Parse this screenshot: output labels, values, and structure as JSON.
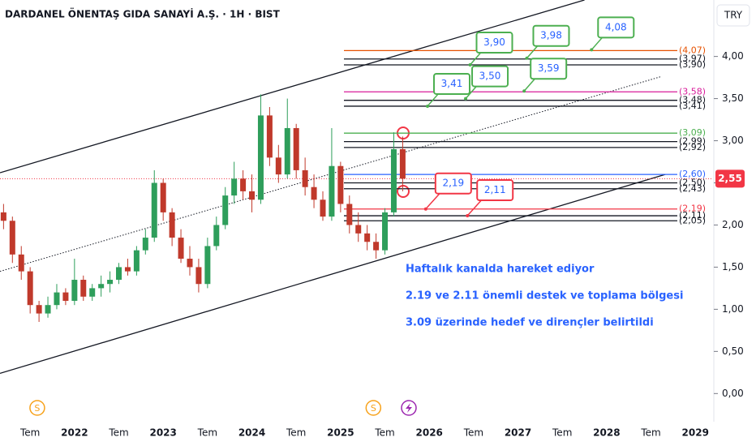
{
  "chart_data": {
    "type": "candlestick",
    "title": "DARDANEL ÖNENTAŞ GIDA SANAYİ A.Ş. · 1H · BIST",
    "currency": "TRY",
    "xlim": [
      2021.16,
      2029.19
    ],
    "ylim": [
      -0.43,
      4.67
    ],
    "xticks": [
      {
        "value": 2021.5,
        "label": "Tem"
      },
      2022,
      {
        "value": 2022.5,
        "label": "Tem"
      },
      2023,
      {
        "value": 2023.5,
        "label": "Tem"
      },
      2024,
      {
        "value": 2024.5,
        "label": "Tem"
      },
      2025,
      {
        "value": 2025.5,
        "label": "Tem"
      },
      2026,
      {
        "value": 2026.5,
        "label": "Tem"
      },
      2027,
      {
        "value": 2027.5,
        "label": "Tem"
      },
      2028,
      {
        "value": 2028.5,
        "label": "Tem"
      },
      2029
    ],
    "yticks": [
      {
        "value": 0,
        "label": "0,00"
      },
      {
        "value": 0.5,
        "label": "0,50"
      },
      {
        "value": 1,
        "label": "1,00"
      },
      {
        "value": 1.5,
        "label": "1,50"
      },
      {
        "value": 2,
        "label": "2,00"
      },
      {
        "value": 2.5,
        "label": "2,50"
      },
      {
        "value": 3,
        "label": "3,00"
      },
      {
        "value": 3.5,
        "label": "3,50"
      },
      {
        "value": 4,
        "label": "4,00"
      }
    ],
    "up_color": "#2e9e5b",
    "down_color": "#c0392b",
    "x": [
      2021.2,
      2021.3,
      2021.4,
      2021.5,
      2021.6,
      2021.7,
      2021.8,
      2021.9,
      2022.0,
      2022.1,
      2022.2,
      2022.3,
      2022.4,
      2022.5,
      2022.6,
      2022.7,
      2022.8,
      2022.9,
      2023.0,
      2023.1,
      2023.2,
      2023.3,
      2023.4,
      2023.5,
      2023.6,
      2023.7,
      2023.8,
      2023.9,
      2024.0,
      2024.1,
      2024.2,
      2024.3,
      2024.4,
      2024.5,
      2024.6,
      2024.7,
      2024.8,
      2024.9,
      2025.0,
      2025.1,
      2025.2,
      2025.3,
      2025.4,
      2025.5,
      2025.6,
      2025.7
    ],
    "open": [
      2.15,
      2.05,
      1.65,
      1.45,
      1.05,
      0.95,
      1.05,
      1.2,
      1.1,
      1.35,
      1.15,
      1.25,
      1.3,
      1.35,
      1.5,
      1.45,
      1.7,
      1.85,
      2.5,
      2.15,
      1.85,
      1.6,
      1.5,
      1.3,
      1.75,
      2.0,
      2.35,
      2.55,
      2.4,
      2.3,
      3.3,
      2.8,
      2.6,
      3.15,
      2.65,
      2.45,
      2.3,
      2.1,
      2.7,
      2.25,
      2.0,
      1.9,
      1.8,
      1.7,
      2.15,
      2.9
    ],
    "high": [
      2.25,
      2.1,
      1.75,
      1.5,
      1.1,
      1.15,
      1.3,
      1.25,
      1.6,
      1.4,
      1.3,
      1.4,
      1.45,
      1.55,
      1.6,
      1.75,
      1.95,
      2.65,
      2.55,
      2.2,
      1.95,
      1.75,
      1.6,
      1.85,
      2.1,
      2.45,
      2.75,
      2.65,
      2.6,
      3.55,
      3.4,
      2.95,
      3.5,
      3.2,
      2.8,
      2.6,
      2.4,
      3.15,
      2.75,
      2.35,
      2.15,
      2.0,
      1.9,
      2.2,
      3.1,
      3.05
    ],
    "low": [
      1.95,
      1.55,
      1.35,
      0.95,
      0.85,
      0.9,
      1.0,
      1.05,
      1.05,
      1.1,
      1.1,
      1.15,
      1.2,
      1.3,
      1.4,
      1.4,
      1.65,
      1.8,
      2.05,
      1.75,
      1.55,
      1.4,
      1.2,
      1.25,
      1.7,
      1.95,
      2.25,
      2.3,
      2.15,
      2.25,
      2.7,
      2.5,
      2.55,
      2.55,
      2.35,
      2.2,
      2.05,
      2.05,
      2.15,
      1.9,
      1.8,
      1.7,
      1.6,
      1.65,
      2.1,
      2.4
    ],
    "close": [
      2.05,
      1.65,
      1.45,
      1.05,
      0.95,
      1.05,
      1.2,
      1.1,
      1.35,
      1.15,
      1.25,
      1.3,
      1.35,
      1.5,
      1.45,
      1.7,
      1.85,
      2.5,
      2.15,
      1.85,
      1.6,
      1.5,
      1.3,
      1.75,
      2.0,
      2.35,
      2.55,
      2.4,
      2.3,
      3.3,
      2.8,
      2.6,
      3.15,
      2.65,
      2.45,
      2.3,
      2.1,
      2.7,
      2.25,
      2.0,
      1.9,
      1.8,
      1.7,
      2.15,
      2.9,
      2.55
    ],
    "last_price": {
      "value": 2.55,
      "label": "2,55"
    },
    "last_price_color": "#f23645",
    "trend_lines": [
      {
        "x": [
          2021.16,
          2027.75
        ],
        "y": [
          2.62,
          4.67
        ],
        "color": "#131722",
        "style": "solid"
      },
      {
        "x": [
          2021.16,
          2028.66
        ],
        "y": [
          0.24,
          2.6
        ],
        "color": "#131722",
        "style": "solid"
      },
      {
        "x": [
          2021.16,
          2028.61
        ],
        "y": [
          1.45,
          3.76
        ],
        "color": "#131722",
        "style": "dotted"
      }
    ],
    "levels": [
      {
        "value": 4.07,
        "label": "(4,07)",
        "color": "#e65100"
      },
      {
        "value": 3.97,
        "label": "(3,97)",
        "color": "#131722"
      },
      {
        "value": 3.9,
        "label": "(3,90)",
        "color": "#131722"
      },
      {
        "value": 3.58,
        "label": "(3,58)",
        "color": "#d81b9a"
      },
      {
        "value": 3.48,
        "label": "(3,48)",
        "color": "#131722"
      },
      {
        "value": 3.41,
        "label": "(3,41)",
        "color": "#131722"
      },
      {
        "value": 3.09,
        "label": "(3,09)",
        "color": "#4caf50"
      },
      {
        "value": 2.99,
        "label": "(2,99)",
        "color": "#131722"
      },
      {
        "value": 2.92,
        "label": "(2,92)",
        "color": "#131722"
      },
      {
        "value": 2.6,
        "label": "(2,60)",
        "color": "#2962ff"
      },
      {
        "value": 2.5,
        "label": "(2,50)",
        "color": "#131722"
      },
      {
        "value": 2.43,
        "label": "(2,43)",
        "color": "#131722"
      },
      {
        "value": 2.19,
        "label": "(2,19)",
        "color": "#f23645"
      },
      {
        "value": 2.11,
        "label": "(2,11)",
        "color": "#131722"
      },
      {
        "value": 2.05,
        "label": "(2,05)",
        "color": "#131722"
      }
    ],
    "callouts": [
      {
        "x": 2025.98,
        "value": 3.41,
        "label": "3,41",
        "color": "#4caf50"
      },
      {
        "x": 2026.41,
        "value": 3.5,
        "label": "3,50",
        "color": "#4caf50"
      },
      {
        "x": 2027.07,
        "value": 3.59,
        "label": "3,59",
        "color": "#4caf50"
      },
      {
        "x": 2026.46,
        "value": 3.9,
        "label": "3,90",
        "color": "#4caf50"
      },
      {
        "x": 2027.1,
        "value": 3.98,
        "label": "3,98",
        "color": "#4caf50"
      },
      {
        "x": 2027.83,
        "value": 4.08,
        "label": "4,08",
        "color": "#4caf50"
      },
      {
        "x": 2025.96,
        "value": 2.19,
        "label": "2,19",
        "color": "#f23645"
      },
      {
        "x": 2026.43,
        "value": 2.11,
        "label": "2,11",
        "color": "#f23645"
      }
    ],
    "notes": [
      "Haftalık kanalda hareket ediyor",
      "2.19 ve 2.11 önemli destek ve toplama bölgesi",
      "3.09 üzerinde hedef ve dirençler belirtildi"
    ],
    "events": [
      {
        "x": 2021.58,
        "label": "S"
      },
      {
        "x": 2025.37,
        "label": "S"
      }
    ]
  }
}
